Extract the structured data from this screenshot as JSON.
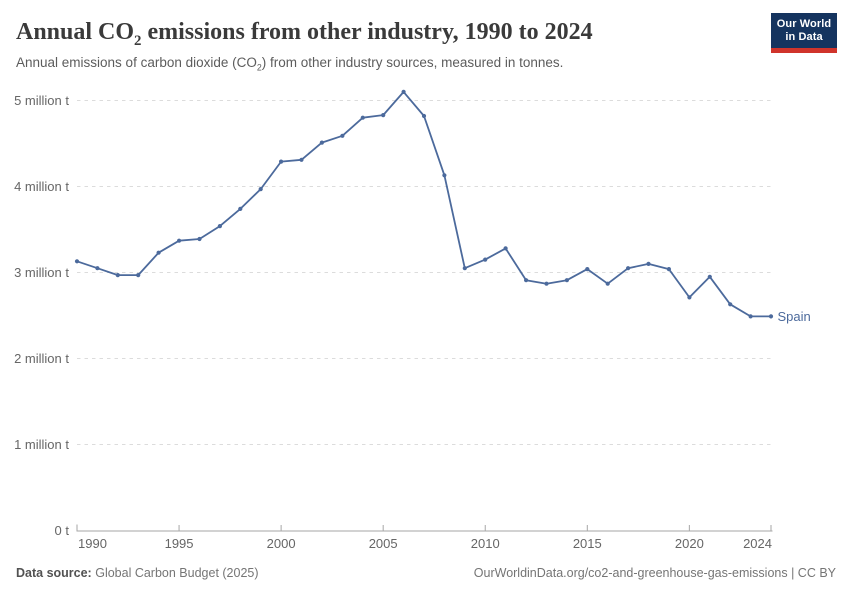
{
  "header": {
    "title": {
      "pre_sub": "Annual CO",
      "sub": "2",
      "post_sub": " emissions from other industry, 1990 to 2024"
    },
    "subtitle": {
      "pre_sub": "Annual emissions of carbon dioxide (CO",
      "sub": "2",
      "post_sub": ") from other industry sources, measured in tonnes."
    }
  },
  "logo": {
    "line1": "Our World",
    "line2": "in Data",
    "bg": "#15345f",
    "stripe": "#d0342b"
  },
  "chart_data": {
    "type": "line",
    "title": "Annual CO₂ emissions from other industry, 1990 to 2024",
    "subtitle": "Annual emissions of carbon dioxide (CO₂) from other industry sources, measured in tonnes.",
    "unit": "tonnes",
    "grid": "horizontal-dashed",
    "legend_position": "end-of-line",
    "xlim": [
      1990,
      2024
    ],
    "ylim": [
      0,
      5
    ],
    "x": [
      1990,
      1991,
      1992,
      1993,
      1994,
      1995,
      1996,
      1997,
      1998,
      1999,
      2000,
      2001,
      2002,
      2003,
      2004,
      2005,
      2006,
      2007,
      2008,
      2009,
      2010,
      2011,
      2012,
      2013,
      2014,
      2015,
      2016,
      2017,
      2018,
      2019,
      2020,
      2021,
      2022,
      2023,
      2024
    ],
    "series": [
      {
        "name": "Spain",
        "color": "#4c6a9c",
        "values_million_tonnes": [
          3.13,
          3.05,
          2.97,
          2.97,
          3.23,
          3.37,
          3.39,
          3.54,
          3.74,
          3.97,
          4.29,
          4.31,
          4.51,
          4.59,
          4.8,
          4.83,
          5.1,
          4.82,
          4.13,
          3.05,
          3.15,
          3.28,
          2.91,
          2.87,
          2.91,
          3.04,
          2.87,
          3.05,
          3.1,
          3.04,
          2.71,
          2.95,
          2.63,
          2.49,
          2.49
        ]
      }
    ],
    "x_ticks": [
      1990,
      1995,
      2000,
      2005,
      2010,
      2015,
      2020,
      2024
    ],
    "y_ticks": [
      {
        "value": 0,
        "label": "0 t"
      },
      {
        "value": 1,
        "label": "1 million t"
      },
      {
        "value": 2,
        "label": "2 million t"
      },
      {
        "value": 3,
        "label": "3 million t"
      },
      {
        "value": 4,
        "label": "4 million t"
      },
      {
        "value": 5,
        "label": "5 million t"
      }
    ]
  },
  "footer": {
    "source_label": "Data source:",
    "source_value": "Global Carbon Budget (2025)",
    "rights": "OurWorldinData.org/co2-and-greenhouse-gas-emissions | CC BY"
  }
}
